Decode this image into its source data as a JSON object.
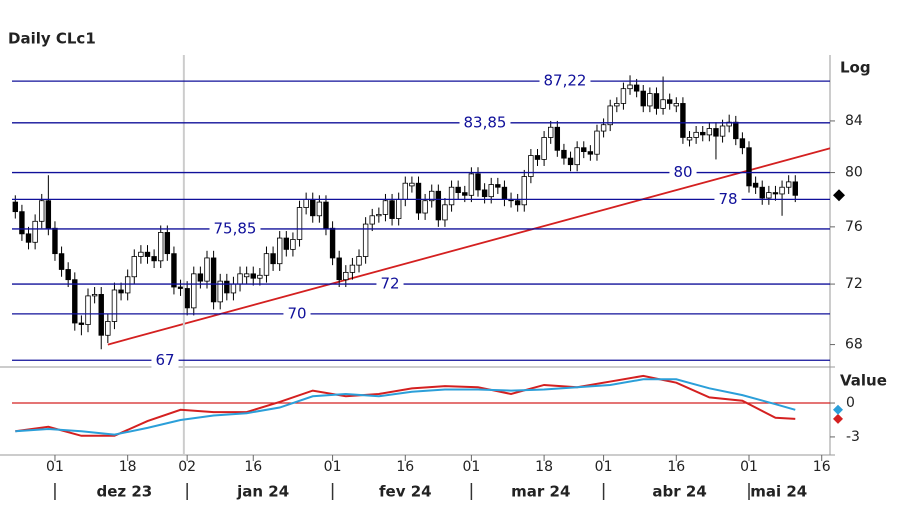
{
  "chart_data": [
    {
      "type": "candlestick",
      "title": "Daily CLc1",
      "y_axis_title": "Log",
      "log_scale": true,
      "dates": [
        "2023-11-23",
        "2023-11-24",
        "2023-11-27",
        "2023-11-28",
        "2023-11-29",
        "2023-11-30",
        "2023-12-01",
        "2023-12-04",
        "2023-12-05",
        "2023-12-06",
        "2023-12-07",
        "2023-12-08",
        "2023-12-11",
        "2023-12-12",
        "2023-12-13",
        "2023-12-14",
        "2023-12-15",
        "2023-12-18",
        "2023-12-19",
        "2023-12-20",
        "2023-12-21",
        "2023-12-22",
        "2023-12-26",
        "2023-12-27",
        "2023-12-28",
        "2023-12-29",
        "2024-01-02",
        "2024-01-03",
        "2024-01-04",
        "2024-01-05",
        "2024-01-08",
        "2024-01-09",
        "2024-01-10",
        "2024-01-11",
        "2024-01-12",
        "2024-01-15",
        "2024-01-16",
        "2024-01-17",
        "2024-01-18",
        "2024-01-19",
        "2024-01-22",
        "2024-01-23",
        "2024-01-24",
        "2024-01-25",
        "2024-01-26",
        "2024-01-29",
        "2024-01-30",
        "2024-01-31",
        "2024-02-01",
        "2024-02-02",
        "2024-02-05",
        "2024-02-06",
        "2024-02-07",
        "2024-02-08",
        "2024-02-09",
        "2024-02-12",
        "2024-02-13",
        "2024-02-14",
        "2024-02-15",
        "2024-02-16",
        "2024-02-19",
        "2024-02-20",
        "2024-02-21",
        "2024-02-22",
        "2024-02-23",
        "2024-02-26",
        "2024-02-27",
        "2024-02-28",
        "2024-02-29",
        "2024-03-01",
        "2024-03-04",
        "2024-03-05",
        "2024-03-06",
        "2024-03-07",
        "2024-03-08",
        "2024-03-11",
        "2024-03-12",
        "2024-03-13",
        "2024-03-14",
        "2024-03-15",
        "2024-03-18",
        "2024-03-19",
        "2024-03-20",
        "2024-03-21",
        "2024-03-22",
        "2024-03-25",
        "2024-03-26",
        "2024-03-27",
        "2024-03-28",
        "2024-04-01",
        "2024-04-02",
        "2024-04-03",
        "2024-04-04",
        "2024-04-05",
        "2024-04-08",
        "2024-04-09",
        "2024-04-10",
        "2024-04-11",
        "2024-04-12",
        "2024-04-15",
        "2024-04-16",
        "2024-04-17",
        "2024-04-18",
        "2024-04-19",
        "2024-04-22",
        "2024-04-23",
        "2024-04-24",
        "2024-04-25",
        "2024-04-26",
        "2024-04-29",
        "2024-04-30",
        "2024-05-01",
        "2024-05-02",
        "2024-05-03",
        "2024-05-06",
        "2024-05-07",
        "2024-05-08",
        "2024-05-09",
        "2024-05-10"
      ],
      "open": [
        77.8,
        77.1,
        75.5,
        74.9,
        76.4,
        77.9,
        75.9,
        74.1,
        73.0,
        72.3,
        69.4,
        69.3,
        71.2,
        71.3,
        68.6,
        69.5,
        71.6,
        71.4,
        72.5,
        73.9,
        74.2,
        73.9,
        73.6,
        75.6,
        74.1,
        71.8,
        71.7,
        70.4,
        72.7,
        72.2,
        73.8,
        70.8,
        72.2,
        71.4,
        72.0,
        72.5,
        72.7,
        72.4,
        72.6,
        74.1,
        73.4,
        75.2,
        74.4,
        75.1,
        77.4,
        78.0,
        76.8,
        77.8,
        75.9,
        73.8,
        72.3,
        72.8,
        73.3,
        73.9,
        76.2,
        76.8,
        76.9,
        77.9,
        76.6,
        78.0,
        79.0,
        79.2,
        77.0,
        77.9,
        78.6,
        76.5,
        77.6,
        78.9,
        78.5,
        78.3,
        79.9,
        78.7,
        78.2,
        79.1,
        78.9,
        78.0,
        77.9,
        77.6,
        79.7,
        81.3,
        81.0,
        82.7,
        83.5,
        81.7,
        81.1,
        80.6,
        81.9,
        81.6,
        81.4,
        83.2,
        83.7,
        85.2,
        85.4,
        86.6,
        86.9,
        86.4,
        85.2,
        86.2,
        85.0,
        85.7,
        85.2,
        85.4,
        82.5,
        82.7,
        83.1,
        82.9,
        83.4,
        82.8,
        83.6,
        83.9,
        82.6,
        81.9,
        79.2,
        78.9,
        78.1,
        78.5,
        78.4,
        78.9,
        79.3
      ],
      "high": [
        78.3,
        77.6,
        76.0,
        76.9,
        78.4,
        79.8,
        76.4,
        74.6,
        73.5,
        72.8,
        69.9,
        71.7,
        71.8,
        71.8,
        70.0,
        72.1,
        72.1,
        73.0,
        74.4,
        74.7,
        74.7,
        74.4,
        76.1,
        76.1,
        74.6,
        72.3,
        72.2,
        73.2,
        73.2,
        74.3,
        74.3,
        72.7,
        72.7,
        72.5,
        73.2,
        73.2,
        73.2,
        73.1,
        74.6,
        74.6,
        75.7,
        75.7,
        75.6,
        77.9,
        78.5,
        78.5,
        78.3,
        78.3,
        76.4,
        74.3,
        73.3,
        73.8,
        74.4,
        76.7,
        77.3,
        77.4,
        78.4,
        78.4,
        78.5,
        79.7,
        79.7,
        79.7,
        78.4,
        79.1,
        79.1,
        78.1,
        79.4,
        79.4,
        79.0,
        80.4,
        80.4,
        79.2,
        79.6,
        79.6,
        79.4,
        78.5,
        78.4,
        80.2,
        81.8,
        81.8,
        83.2,
        84.0,
        84.0,
        82.2,
        81.6,
        82.4,
        82.4,
        82.1,
        83.7,
        84.2,
        85.7,
        85.9,
        87.1,
        87.7,
        87.4,
        86.9,
        86.7,
        86.7,
        87.6,
        86.2,
        85.9,
        85.9,
        83.2,
        83.6,
        83.6,
        83.9,
        83.9,
        84.1,
        84.5,
        84.4,
        83.1,
        82.4,
        79.7,
        79.4,
        79.0,
        79.0,
        79.4,
        79.8,
        79.8
      ],
      "low": [
        76.6,
        75.0,
        74.4,
        74.4,
        75.9,
        75.4,
        73.6,
        72.5,
        71.8,
        68.9,
        68.6,
        68.8,
        70.7,
        67.7,
        68.1,
        69.0,
        70.9,
        70.9,
        72.0,
        73.4,
        73.4,
        73.1,
        73.1,
        73.6,
        71.3,
        71.2,
        69.9,
        69.9,
        71.7,
        71.7,
        70.3,
        70.3,
        70.9,
        70.9,
        71.5,
        72.0,
        71.9,
        71.9,
        72.1,
        72.9,
        72.9,
        73.9,
        73.9,
        74.6,
        76.9,
        76.3,
        76.3,
        75.4,
        73.3,
        71.8,
        71.8,
        72.3,
        72.8,
        73.4,
        75.7,
        76.3,
        76.4,
        76.1,
        76.1,
        77.5,
        78.5,
        76.5,
        76.5,
        77.4,
        76.0,
        76.0,
        77.1,
        78.0,
        77.8,
        77.8,
        78.2,
        77.7,
        77.7,
        78.4,
        77.5,
        77.4,
        77.1,
        77.1,
        79.2,
        80.5,
        80.5,
        82.2,
        81.2,
        80.6,
        80.1,
        80.1,
        81.1,
        80.9,
        80.9,
        82.7,
        83.2,
        84.7,
        84.9,
        86.1,
        85.9,
        84.7,
        84.7,
        84.5,
        84.5,
        84.9,
        84.7,
        82.2,
        82.0,
        82.2,
        82.4,
        82.4,
        81.0,
        82.3,
        83.1,
        82.1,
        81.4,
        78.5,
        78.4,
        77.6,
        77.6,
        77.9,
        76.8,
        78.4,
        77.8
      ],
      "close": [
        77.1,
        75.5,
        74.9,
        76.4,
        77.9,
        75.9,
        74.1,
        73.0,
        72.3,
        69.4,
        69.3,
        71.2,
        71.3,
        68.6,
        69.5,
        71.6,
        71.4,
        72.5,
        73.9,
        74.2,
        73.9,
        73.6,
        75.6,
        74.1,
        71.8,
        71.7,
        70.4,
        72.7,
        72.2,
        73.8,
        70.8,
        72.2,
        71.4,
        72.0,
        72.7,
        72.7,
        72.4,
        72.6,
        74.1,
        73.4,
        75.2,
        74.4,
        75.1,
        77.4,
        78.0,
        76.8,
        77.8,
        75.9,
        73.8,
        72.3,
        72.8,
        73.3,
        73.9,
        76.2,
        76.8,
        76.9,
        77.9,
        76.6,
        78.0,
        79.2,
        79.2,
        77.0,
        77.9,
        78.6,
        76.5,
        77.6,
        78.9,
        78.5,
        78.3,
        79.9,
        78.7,
        78.2,
        79.1,
        78.9,
        78.0,
        77.9,
        77.6,
        79.7,
        81.3,
        81.0,
        82.7,
        83.5,
        81.7,
        81.1,
        80.6,
        81.9,
        81.6,
        81.4,
        83.2,
        83.7,
        85.2,
        85.4,
        86.6,
        86.9,
        86.4,
        85.2,
        86.2,
        85.0,
        85.7,
        85.4,
        85.4,
        82.7,
        82.7,
        83.1,
        82.9,
        83.4,
        82.8,
        83.6,
        83.9,
        82.6,
        81.9,
        79.0,
        78.9,
        78.1,
        78.5,
        78.4,
        78.9,
        79.3,
        78.3
      ],
      "up_color": "#ffffff",
      "down_color": "#000000",
      "last_marker_color": "#000000",
      "ylim": [
        66.7,
        89.4
      ],
      "yticks": [
        68,
        72,
        76,
        80,
        84
      ],
      "levels": [
        {
          "value": 87.22,
          "label": "87,22"
        },
        {
          "value": 83.85,
          "label": "83,85"
        },
        {
          "value": 80,
          "label": "80"
        },
        {
          "value": 78,
          "label": "78"
        },
        {
          "value": 75.85,
          "label": "75,85"
        },
        {
          "value": 72,
          "label": "72"
        },
        {
          "value": 70,
          "label": "70"
        },
        {
          "value": 67,
          "label": "67"
        }
      ],
      "level_color": "#10109a",
      "trendline": {
        "x": [
          "2023-12-13",
          "2024-05-20"
        ],
        "values": [
          68,
          81.96
        ],
        "color": "#d42020"
      },
      "xticks": [
        {
          "value": "2023-12-01",
          "label": "01"
        },
        {
          "value": "2023-12-18",
          "label": "18"
        },
        {
          "value": "2024-01-02",
          "label": "02"
        },
        {
          "value": "2024-01-16",
          "label": "16"
        },
        {
          "value": "2024-02-01",
          "label": "01"
        },
        {
          "value": "2024-02-16",
          "label": "16"
        },
        {
          "value": "2024-03-01",
          "label": "01"
        },
        {
          "value": "2024-03-18",
          "label": "18"
        },
        {
          "value": "2024-04-01",
          "label": "01"
        },
        {
          "value": "2024-04-16",
          "label": "16"
        },
        {
          "value": "2024-05-01",
          "label": "01"
        },
        {
          "value": "2024-05-16",
          "label": "16"
        }
      ],
      "month_labels": [
        {
          "value": "2023-12",
          "label": "dez 23"
        },
        {
          "value": "2024-01",
          "label": "jan 24"
        },
        {
          "value": "2024-02",
          "label": "fev 24"
        },
        {
          "value": "2024-03",
          "label": "mar 24"
        },
        {
          "value": "2024-04",
          "label": "abr 24"
        },
        {
          "value": "2024-05",
          "label": "mai 24"
        }
      ]
    },
    {
      "type": "line",
      "y_axis_title": "Value",
      "x": [
        "2023-11-23",
        "2023-11-30",
        "2023-12-07",
        "2023-12-14",
        "2023-12-21",
        "2023-12-29",
        "2024-01-08",
        "2024-01-15",
        "2024-01-22",
        "2024-01-29",
        "2024-02-05",
        "2024-02-12",
        "2024-02-19",
        "2024-02-26",
        "2024-03-04",
        "2024-03-11",
        "2024-03-18",
        "2024-03-25",
        "2024-04-02",
        "2024-04-09",
        "2024-04-16",
        "2024-04-23",
        "2024-04-30",
        "2024-05-07",
        "2024-05-10"
      ],
      "series": [
        {
          "color": "#d42020",
          "values": [
            -2.5,
            -2.1,
            -2.9,
            -2.9,
            -1.6,
            -0.6,
            -0.8,
            -0.8,
            0.1,
            1.1,
            0.6,
            0.8,
            1.3,
            1.5,
            1.4,
            0.8,
            1.6,
            1.4,
            1.9,
            2.4,
            1.8,
            0.5,
            0.2,
            -1.3,
            -1.4
          ]
        },
        {
          "color": "#2b9fd9",
          "values": [
            -2.5,
            -2.3,
            -2.5,
            -2.8,
            -2.2,
            -1.5,
            -1.1,
            -0.9,
            -0.4,
            0.6,
            0.8,
            0.6,
            1.0,
            1.2,
            1.2,
            1.1,
            1.2,
            1.4,
            1.6,
            2.1,
            2.1,
            1.3,
            0.7,
            -0.1,
            -0.6
          ]
        }
      ],
      "hline": 0,
      "hline_color": "#d42020",
      "ylim": [
        -4.6,
        3.1
      ],
      "yticks": [
        0,
        -3
      ]
    }
  ]
}
